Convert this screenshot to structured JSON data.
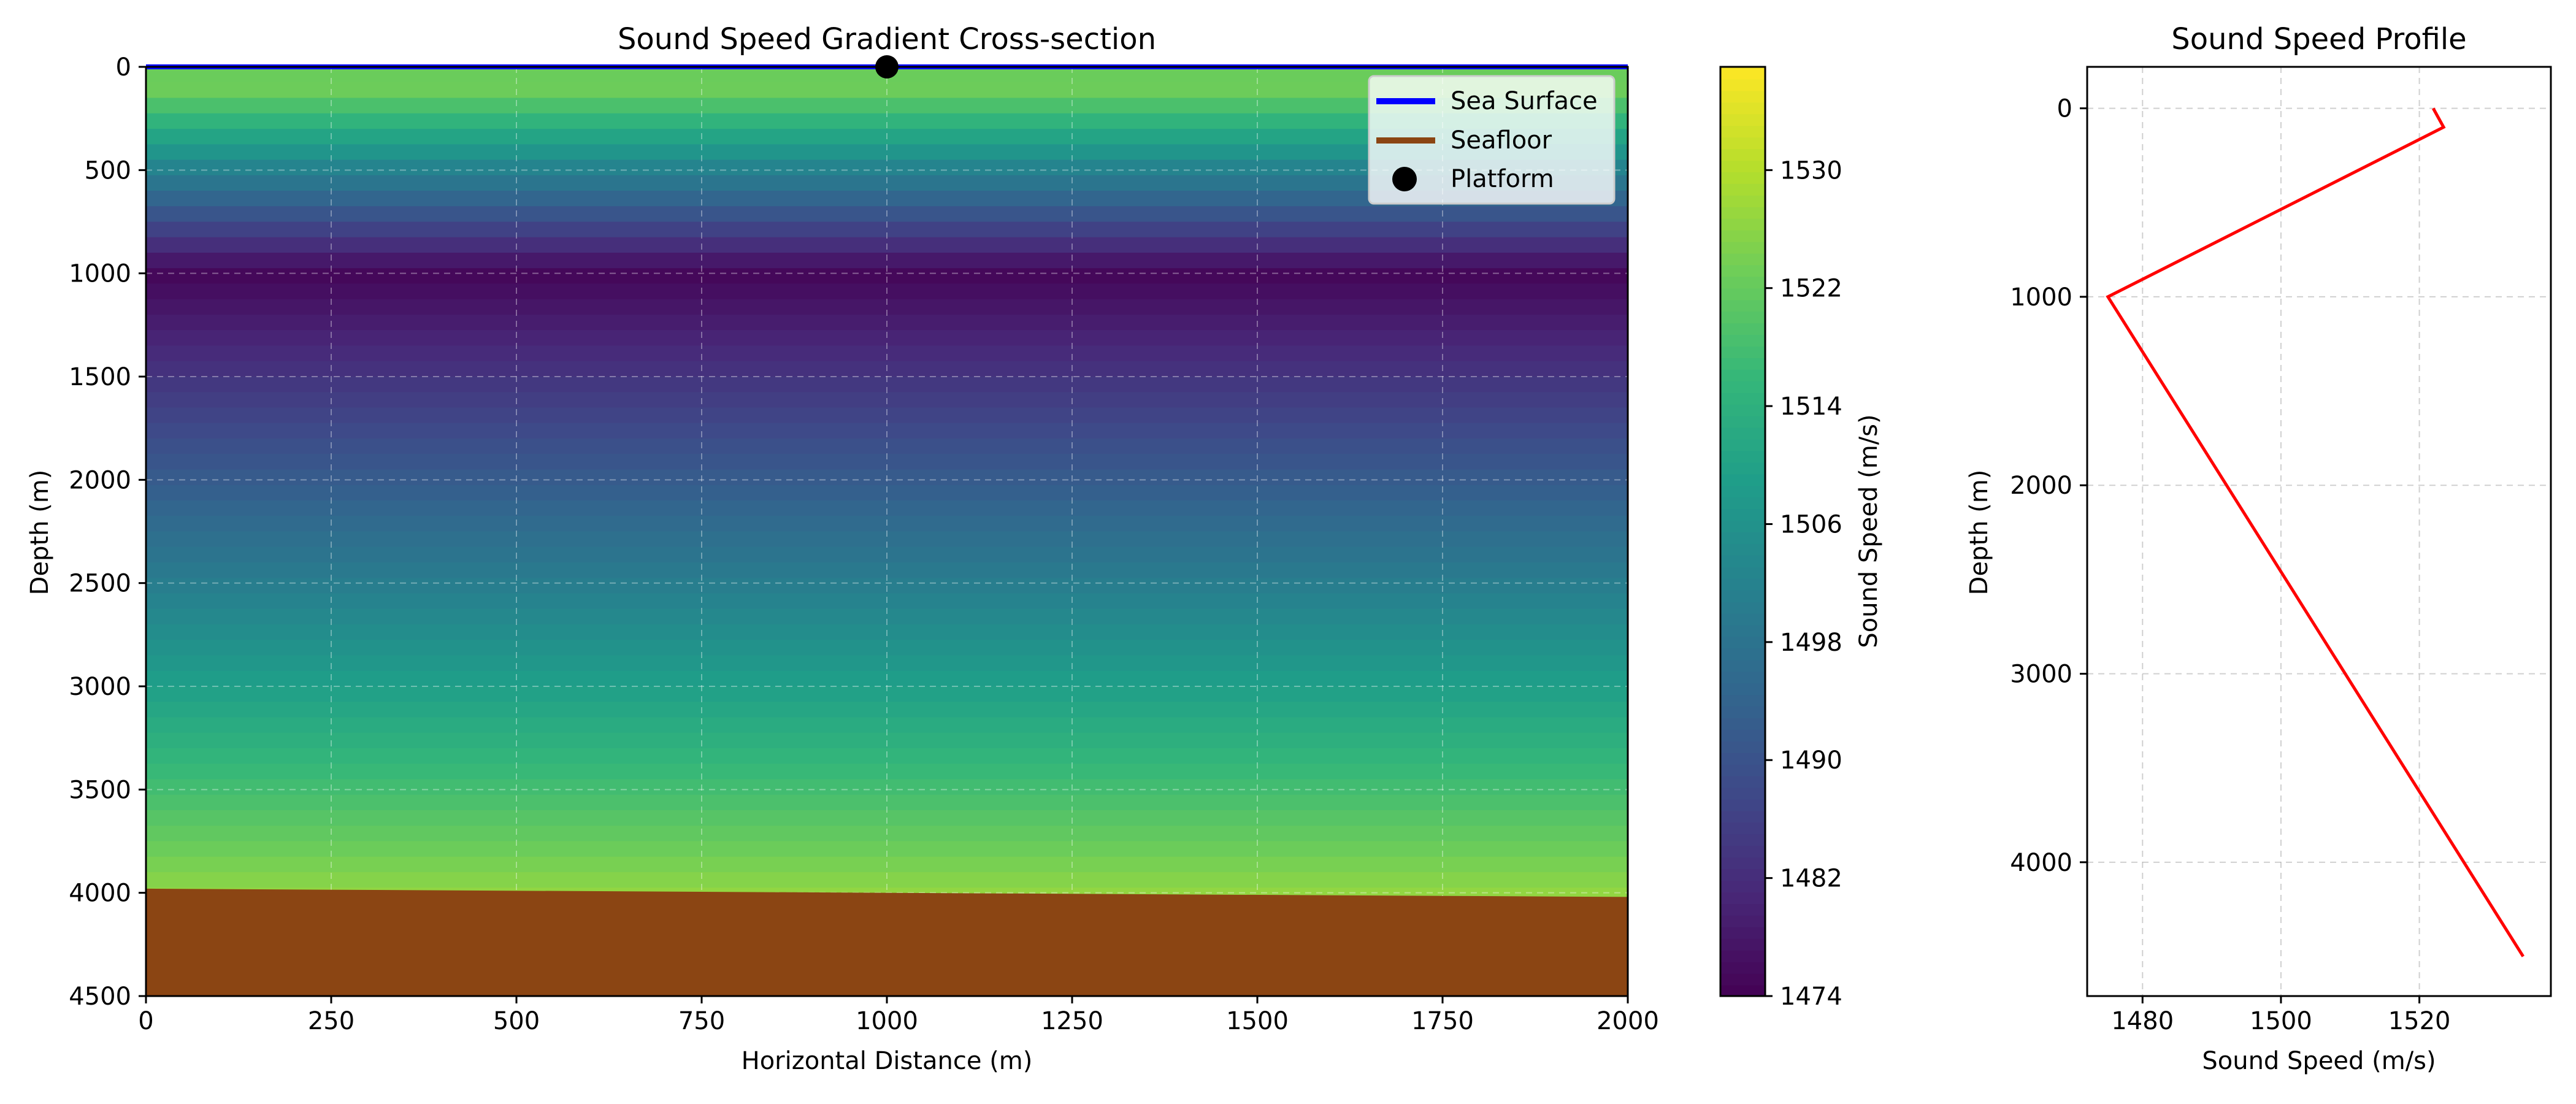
{
  "chart_data": [
    {
      "type": "heatmap",
      "title": "Sound Speed Gradient Cross-section",
      "xlabel": "Horizontal Distance (m)",
      "ylabel": "Depth (m)",
      "xlim": [
        0,
        2000
      ],
      "ylim": [
        4500,
        0
      ],
      "y_inverted": true,
      "grid": true,
      "x_ticks": [
        0,
        250,
        500,
        750,
        1000,
        1250,
        1500,
        1750,
        2000
      ],
      "y_ticks": [
        0,
        500,
        1000,
        1500,
        2000,
        2500,
        3000,
        3500,
        4000,
        4500
      ],
      "colormap": "viridis",
      "sound_speed_profile": {
        "depth": [
          0,
          100,
          1000,
          4500
        ],
        "speed": [
          1522,
          1523.5,
          1475,
          1535
        ]
      },
      "colorbar": {
        "label": "Sound Speed (m/s)",
        "range": [
          1474,
          1537
        ],
        "ticks": [
          1474,
          1482,
          1490,
          1498,
          1506,
          1514,
          1522,
          1530
        ]
      },
      "sea_surface": {
        "name": "Sea Surface",
        "depth": 0,
        "color": "#0000ff"
      },
      "seafloor": {
        "name": "Seafloor",
        "x": [
          0,
          2000
        ],
        "depth": [
          3980,
          4020
        ],
        "color": "#8b4513"
      },
      "platform": {
        "name": "Platform",
        "x": 1000,
        "depth": 0,
        "color": "#000000"
      },
      "legend": {
        "position": "top-right",
        "entries": [
          "Sea Surface",
          "Seafloor",
          "Platform"
        ]
      }
    },
    {
      "type": "line",
      "title": "Sound Speed Profile",
      "xlabel": "Sound Speed (m/s)",
      "ylabel": "Depth (m)",
      "xlim": [
        1472,
        1539
      ],
      "ylim": [
        4710,
        -220
      ],
      "y_inverted": true,
      "grid": true,
      "x_ticks": [
        1480,
        1500,
        1520
      ],
      "y_ticks": [
        0,
        1000,
        2000,
        3000,
        4000
      ],
      "series": [
        {
          "x": [
            1522,
            1523.5,
            1475,
            1535
          ],
          "y": [
            0,
            100,
            1000,
            4500
          ],
          "color": "#ff0000"
        }
      ]
    }
  ]
}
